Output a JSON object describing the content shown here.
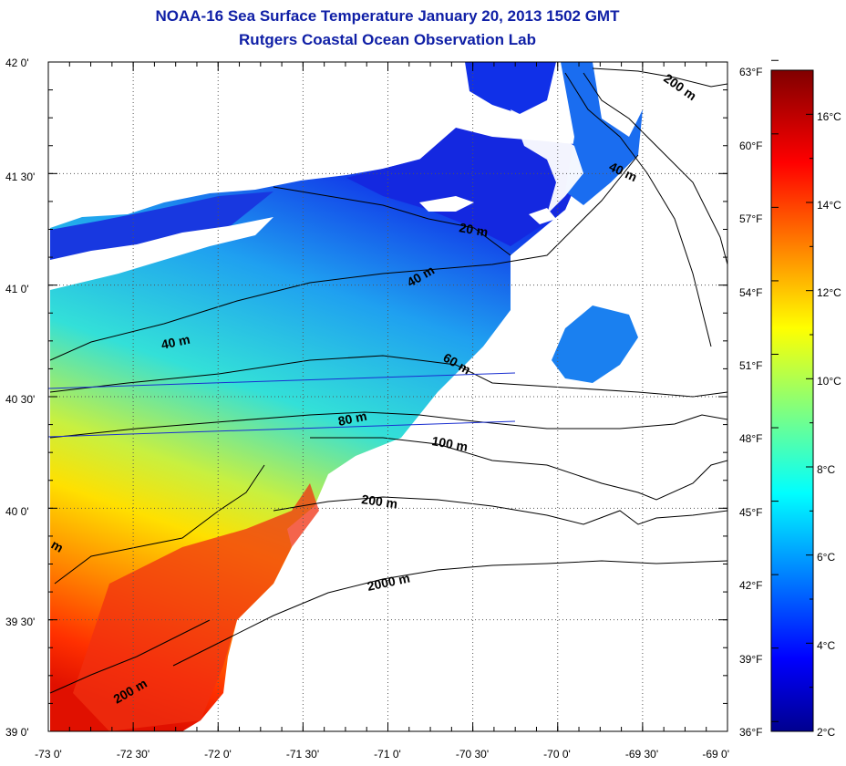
{
  "title": "NOAA-16 Sea Surface Temperature January 20, 2013 1502 GMT",
  "subtitle": "Rutgers Coastal Ocean Observation Lab",
  "colors": {
    "title": "#0f1fa6",
    "land": "#ffffff",
    "no_data": "#ffffff",
    "contour": "#000000",
    "transect": "#1a2fd0"
  },
  "map": {
    "lon_range": [
      -73.0,
      -69.0
    ],
    "lat_range": [
      39.0,
      42.0
    ],
    "lon_ticks": [
      "-73 0'",
      "-72 30'",
      "-72 0'",
      "-71 30'",
      "-71 0'",
      "-70 30'",
      "-70 0'",
      "-69 30'",
      "-69 0'"
    ],
    "lat_ticks": [
      "42 0'",
      "41 30'",
      "41 0'",
      "40 30'",
      "40 0'",
      "39 30'",
      "39 0'"
    ],
    "grid": "dotted",
    "isobath_labels": [
      "200 m",
      "40 m",
      "20 m",
      "40 m",
      "40 m",
      "60 m",
      "80 m",
      "100 m",
      "200 m",
      "2000 m",
      "200 m",
      "m"
    ]
  },
  "colorbar": {
    "colormap": "jet",
    "celsius_range": [
      2,
      17
    ],
    "celsius_ticks": [
      "16°C",
      "14°C",
      "12°C",
      "10°C",
      "8°C",
      "6°C",
      "4°C",
      "2°C"
    ],
    "fahrenheit_ticks": [
      "63°F",
      "60°F",
      "57°F",
      "54°F",
      "51°F",
      "48°F",
      "45°F",
      "42°F",
      "39°F",
      "36°F"
    ]
  }
}
